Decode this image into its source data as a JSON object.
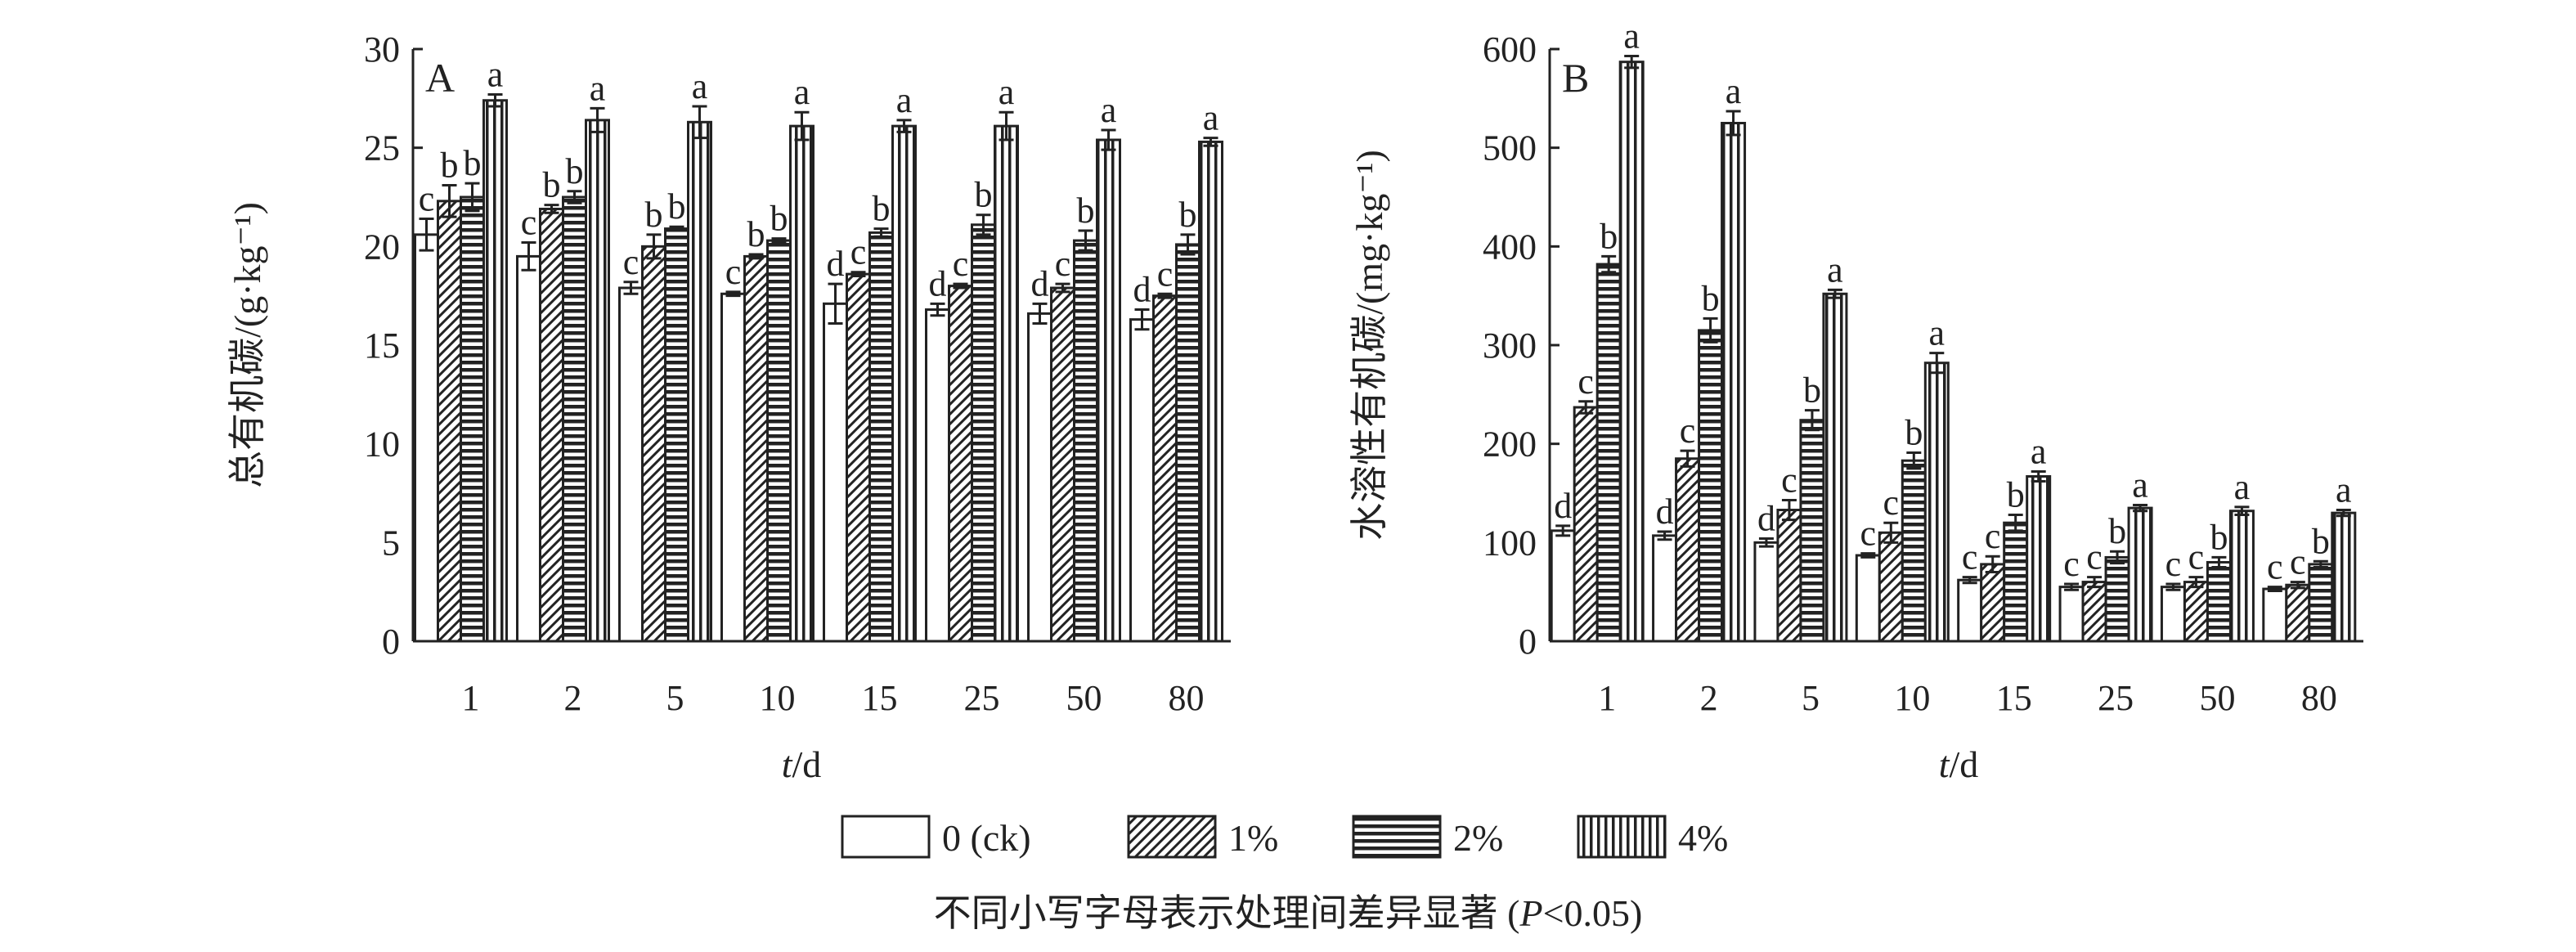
{
  "chart_data": [
    {
      "type": "bar",
      "panel_label": "A",
      "ylabel": "总有机碳/(g·kg⁻¹)",
      "xlabel_var": "t",
      "xlabel_unit": "/d",
      "ylim": [
        0,
        30
      ],
      "yticks": [
        "0",
        "5",
        "10",
        "15",
        "20",
        "25",
        "30"
      ],
      "categories": [
        "1",
        "2",
        "5",
        "10",
        "15",
        "25",
        "50",
        "80"
      ],
      "series": [
        {
          "name": "0 (ck)",
          "values": [
            20.6,
            19.5,
            17.9,
            17.6,
            17.1,
            16.8,
            16.6,
            16.3
          ],
          "errors": [
            0.8,
            0.7,
            0.3,
            0.1,
            1.0,
            0.3,
            0.5,
            0.5
          ],
          "labels": [
            "c",
            "c",
            "c",
            "c",
            "d",
            "d",
            "d",
            "d"
          ]
        },
        {
          "name": "1%",
          "values": [
            22.3,
            21.9,
            20.0,
            19.5,
            18.6,
            18.0,
            17.9,
            17.5
          ],
          "errors": [
            0.8,
            0.2,
            0.6,
            0.1,
            0.1,
            0.1,
            0.2,
            0.1
          ],
          "labels": [
            "b",
            "b",
            "b",
            "b",
            "c",
            "c",
            "c",
            "c"
          ]
        },
        {
          "name": "2%",
          "values": [
            22.5,
            22.5,
            20.9,
            20.3,
            20.7,
            21.1,
            20.3,
            20.1
          ],
          "errors": [
            0.7,
            0.3,
            0.1,
            0.1,
            0.2,
            0.5,
            0.5,
            0.5
          ],
          "labels": [
            "b",
            "b",
            "b",
            "b",
            "b",
            "b",
            "b",
            "b"
          ]
        },
        {
          "name": "4%",
          "values": [
            27.4,
            26.4,
            26.3,
            26.1,
            26.1,
            26.1,
            25.4,
            25.3
          ],
          "errors": [
            0.3,
            0.6,
            0.8,
            0.7,
            0.3,
            0.7,
            0.5,
            0.2
          ],
          "labels": [
            "a",
            "a",
            "a",
            "a",
            "a",
            "a",
            "a",
            "a"
          ]
        }
      ]
    },
    {
      "type": "bar",
      "panel_label": "B",
      "ylabel": "水溶性有机碳/(mg·kg⁻¹)",
      "xlabel_var": "t",
      "xlabel_unit": "/d",
      "ylim": [
        0,
        600
      ],
      "yticks": [
        "0",
        "100",
        "200",
        "300",
        "400",
        "500",
        "600"
      ],
      "categories": [
        "1",
        "2",
        "5",
        "10",
        "15",
        "25",
        "50",
        "80"
      ],
      "series": [
        {
          "name": "0 (ck)",
          "values": [
            112,
            107,
            100,
            87,
            62,
            55,
            55,
            53
          ],
          "errors": [
            5,
            4,
            4,
            2,
            3,
            3,
            3,
            2
          ],
          "labels": [
            "d",
            "d",
            "d",
            "c",
            "c",
            "c",
            "c",
            "c"
          ]
        },
        {
          "name": "1%",
          "values": [
            237,
            185,
            133,
            110,
            78,
            60,
            60,
            57
          ],
          "errors": [
            6,
            8,
            10,
            10,
            8,
            5,
            5,
            3
          ],
          "labels": [
            "c",
            "c",
            "c",
            "c",
            "c",
            "c",
            "c",
            "c"
          ]
        },
        {
          "name": "2%",
          "values": [
            382,
            315,
            224,
            183,
            120,
            85,
            80,
            78
          ],
          "errors": [
            8,
            12,
            10,
            8,
            8,
            6,
            5,
            3
          ],
          "labels": [
            "b",
            "b",
            "b",
            "b",
            "b",
            "b",
            "b",
            "b"
          ]
        },
        {
          "name": "4%",
          "values": [
            587,
            525,
            352,
            282,
            167,
            135,
            132,
            130
          ],
          "errors": [
            6,
            12,
            4,
            10,
            5,
            3,
            4,
            3
          ],
          "labels": [
            "a",
            "a",
            "a",
            "a",
            "a",
            "a",
            "a",
            "a"
          ]
        }
      ]
    }
  ],
  "legend": {
    "items": [
      {
        "label": "0 (ck)",
        "pattern": "blank"
      },
      {
        "label": "1%",
        "pattern": "diagonal"
      },
      {
        "label": "2%",
        "pattern": "horizontal"
      },
      {
        "label": "4%",
        "pattern": "vertical"
      }
    ]
  },
  "note": {
    "text": "不同小写字母表示处理间差异显著 (",
    "p": "P",
    "tail": "<0.05)"
  }
}
